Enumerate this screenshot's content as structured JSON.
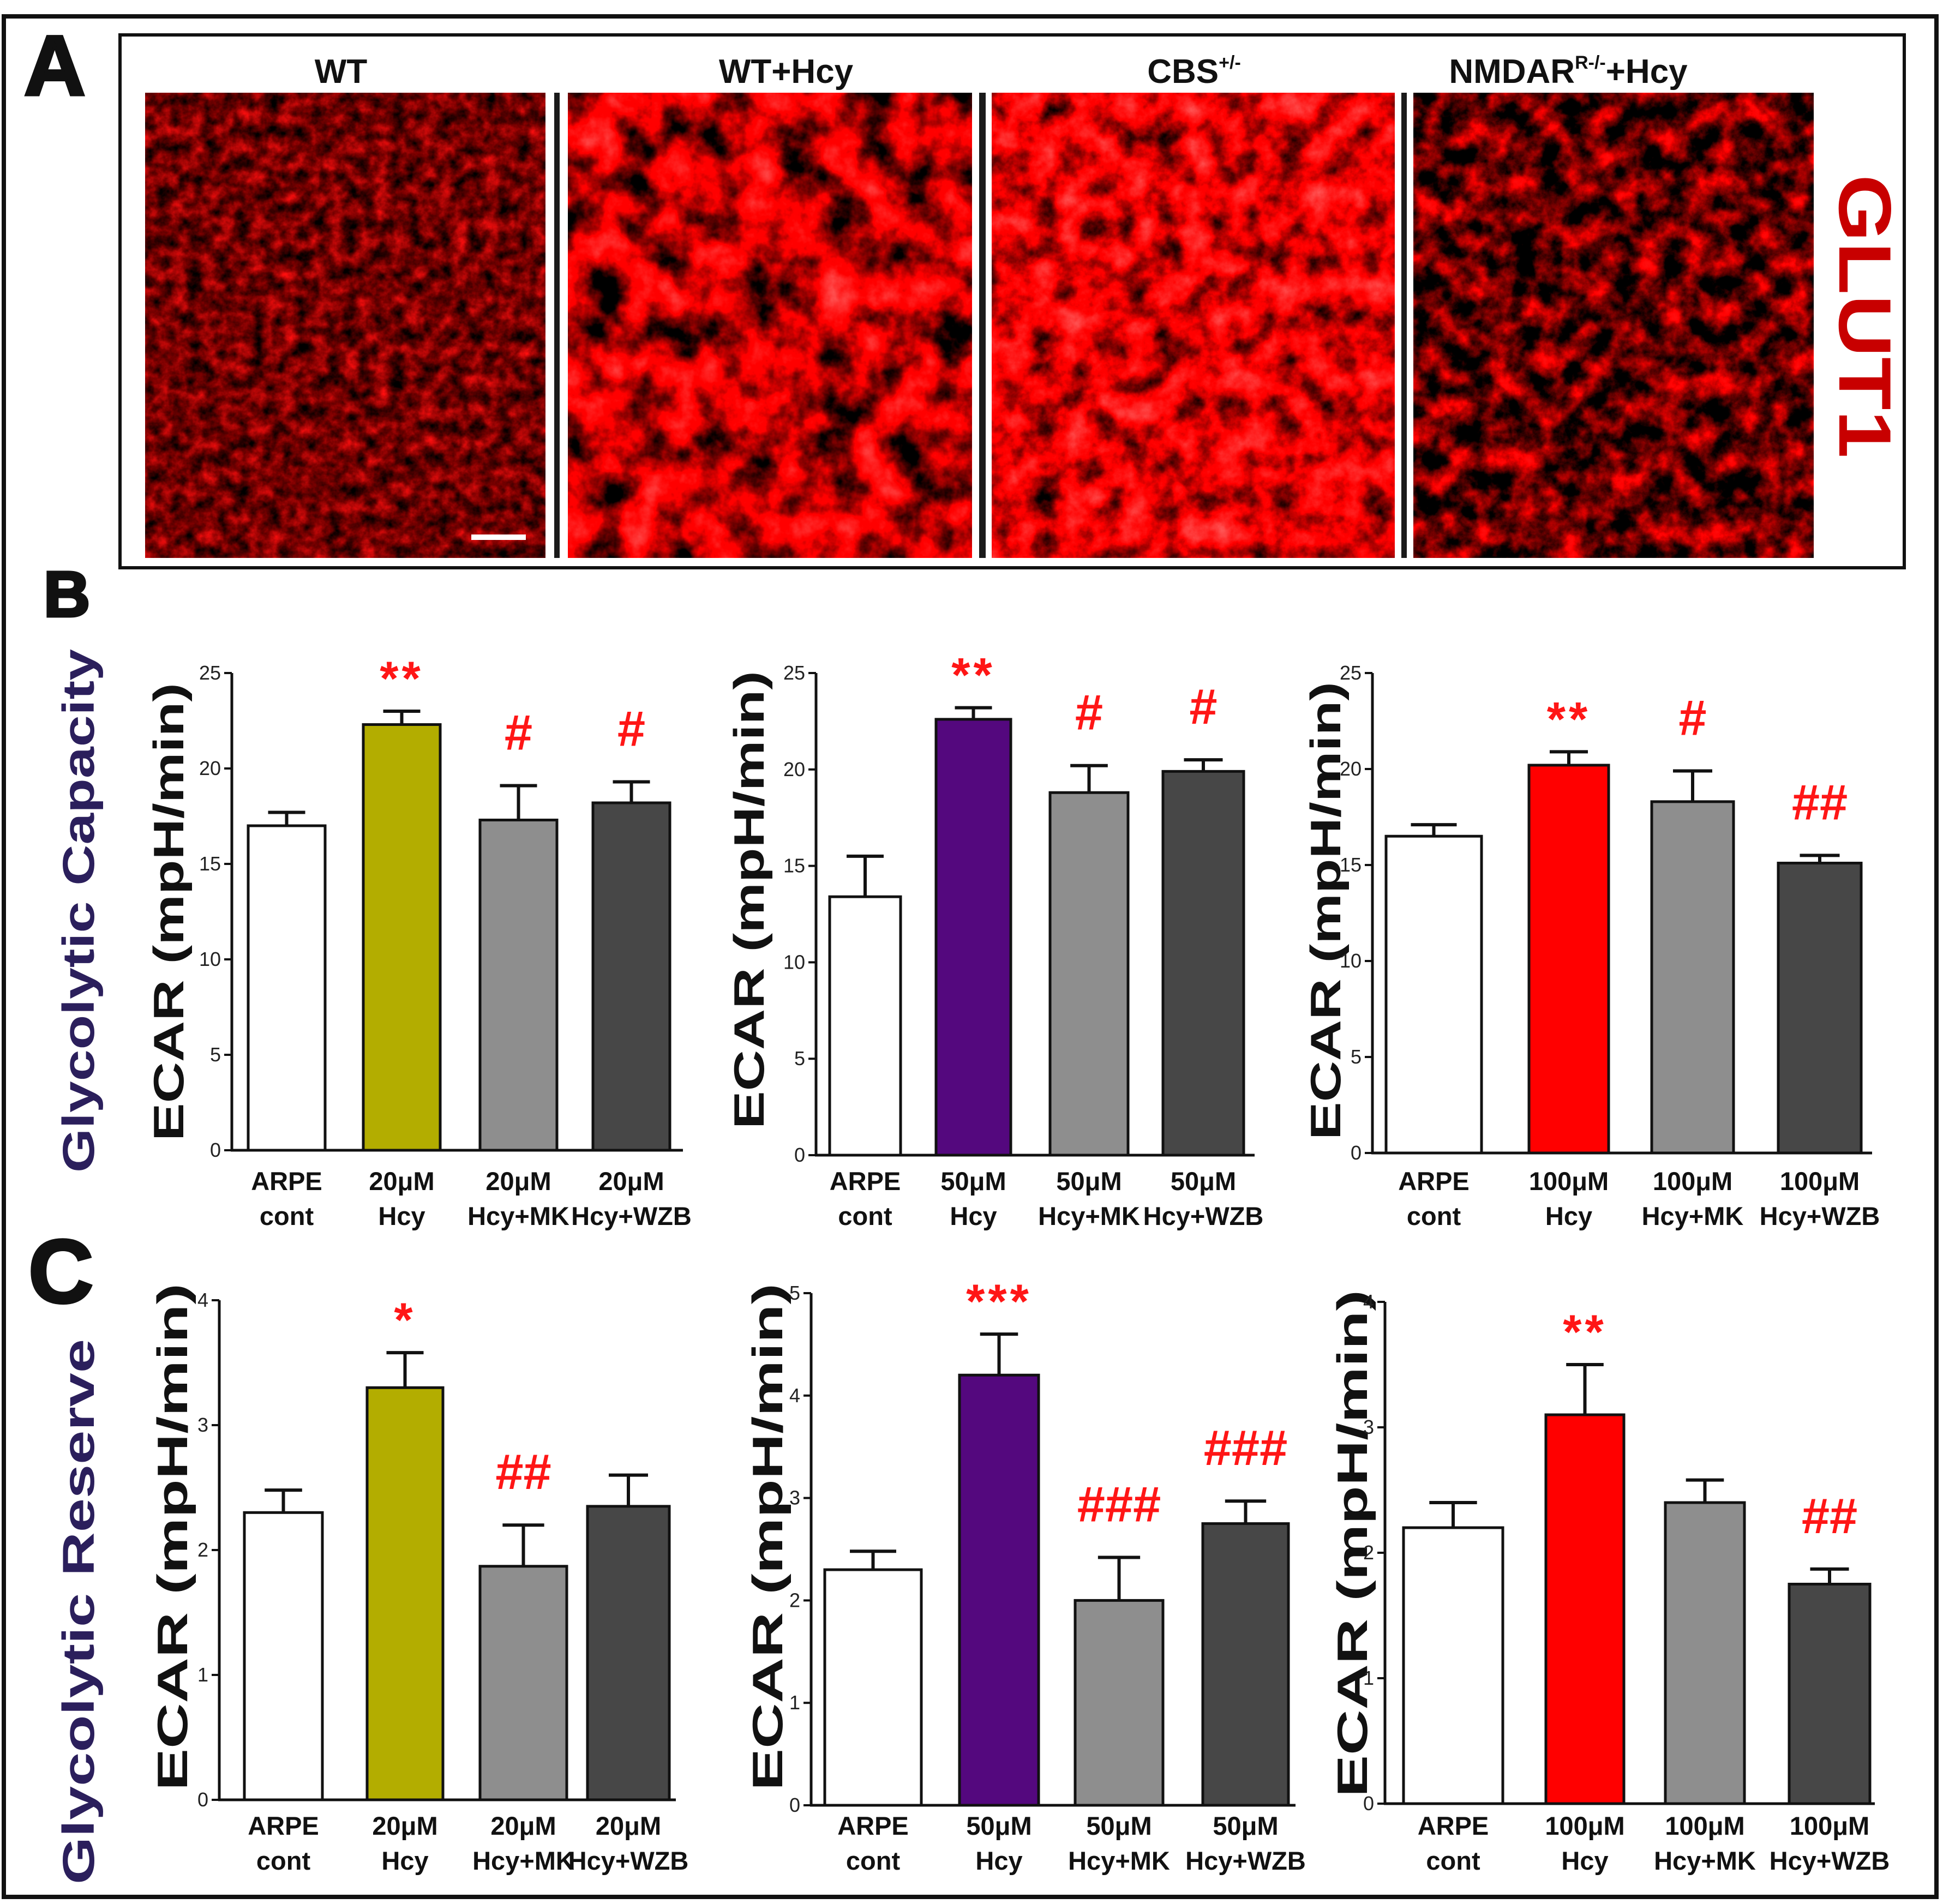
{
  "panel_labels": {
    "a": "A",
    "b": "B",
    "c": "C"
  },
  "panel_a": {
    "titles": [
      {
        "main": "WT"
      },
      {
        "main": "WT+Hcy"
      },
      {
        "main": "CBS",
        "sup": "+/-"
      },
      {
        "main": "NMDAR",
        "sup": "R-/-",
        "suffix": "+Hcy"
      }
    ],
    "marker": "GLUT1",
    "marker_color": "#c80000"
  },
  "row_labels": {
    "b": "Glycolytic Capacity",
    "c": "Glycolytic Reserve",
    "color": "#2b1f5c"
  },
  "significance_color": "#ff1616",
  "chart_data": [
    {
      "id": "B1",
      "type": "bar",
      "row": "B",
      "ylabel": "ECAR (mpH/min)",
      "ylim": [
        0,
        25
      ],
      "yticks": [
        0,
        5,
        10,
        15,
        20,
        25
      ],
      "categories": [
        [
          "ARPE",
          "cont"
        ],
        [
          "20μM",
          "Hcy"
        ],
        [
          "20μM",
          "Hcy+MK"
        ],
        [
          "20μM",
          "Hcy+WZB"
        ]
      ],
      "values": [
        17.0,
        22.3,
        17.3,
        18.2
      ],
      "errors": [
        0.7,
        0.7,
        1.8,
        1.1
      ],
      "significance": [
        "",
        "**",
        "#",
        "#"
      ],
      "bar_colors": [
        "#ffffff",
        "#b3ad00",
        "#8e8e8e",
        "#474747"
      ]
    },
    {
      "id": "B2",
      "type": "bar",
      "row": "B",
      "ylabel": "ECAR (mpH/min)",
      "ylim": [
        0,
        25
      ],
      "yticks": [
        0,
        5,
        10,
        15,
        20,
        25
      ],
      "categories": [
        [
          "ARPE",
          "cont"
        ],
        [
          "50μM",
          "Hcy"
        ],
        [
          "50μM",
          "Hcy+MK"
        ],
        [
          "50μM",
          "Hcy+WZB"
        ]
      ],
      "values": [
        13.4,
        22.6,
        18.8,
        19.9
      ],
      "errors": [
        2.1,
        0.6,
        1.4,
        0.6
      ],
      "significance": [
        "",
        "**",
        "#",
        "#"
      ],
      "bar_colors": [
        "#ffffff",
        "#54087e",
        "#8e8e8e",
        "#474747"
      ]
    },
    {
      "id": "B3",
      "type": "bar",
      "row": "B",
      "ylabel": "ECAR (mpH/min)",
      "ylim": [
        0,
        25
      ],
      "yticks": [
        0,
        5,
        10,
        15,
        20,
        25
      ],
      "categories": [
        [
          "ARPE",
          "cont"
        ],
        [
          "100μM",
          "Hcy"
        ],
        [
          "100μM",
          "Hcy+MK"
        ],
        [
          "100μM",
          "Hcy+WZB"
        ]
      ],
      "values": [
        16.5,
        20.2,
        18.3,
        15.1
      ],
      "errors": [
        0.6,
        0.7,
        1.6,
        0.4
      ],
      "significance": [
        "",
        "**",
        "#",
        "##"
      ],
      "bar_colors": [
        "#ffffff",
        "#ff0000",
        "#8e8e8e",
        "#474747"
      ]
    },
    {
      "id": "C1",
      "type": "bar",
      "row": "C",
      "ylabel": "ECAR (mpH/min)",
      "ylim": [
        0,
        4
      ],
      "yticks": [
        0,
        1,
        2,
        3,
        4
      ],
      "categories": [
        [
          "ARPE",
          "cont"
        ],
        [
          "20μM",
          "Hcy"
        ],
        [
          "20μM",
          "Hcy+MK"
        ],
        [
          "20μM",
          "Hcy+WZB"
        ]
      ],
      "values": [
        2.3,
        3.3,
        1.87,
        2.35
      ],
      "errors": [
        0.18,
        0.28,
        0.33,
        0.25
      ],
      "significance": [
        "",
        "*",
        "##",
        ""
      ],
      "bar_colors": [
        "#ffffff",
        "#b3ad00",
        "#8e8e8e",
        "#474747"
      ]
    },
    {
      "id": "C2",
      "type": "bar",
      "row": "C",
      "ylabel": "ECAR (mpH/min)",
      "ylim": [
        0,
        5
      ],
      "yticks": [
        0,
        1,
        2,
        3,
        4,
        5
      ],
      "categories": [
        [
          "ARPE",
          "cont"
        ],
        [
          "50μM",
          "Hcy"
        ],
        [
          "50μM",
          "Hcy+MK"
        ],
        [
          "50μM",
          "Hcy+WZB"
        ]
      ],
      "values": [
        2.3,
        4.2,
        2.0,
        2.75
      ],
      "errors": [
        0.18,
        0.4,
        0.42,
        0.22
      ],
      "significance": [
        "",
        "***",
        "###",
        "###"
      ],
      "bar_colors": [
        "#ffffff",
        "#54087e",
        "#8e8e8e",
        "#474747"
      ]
    },
    {
      "id": "C3",
      "type": "bar",
      "row": "C",
      "ylabel": "ECAR (mpH/min)",
      "ylim": [
        0,
        4
      ],
      "yticks": [
        0,
        1,
        2,
        3,
        4
      ],
      "categories": [
        [
          "ARPE",
          "cont"
        ],
        [
          "100μM",
          "Hcy"
        ],
        [
          "100μM",
          "Hcy+MK"
        ],
        [
          "100μM",
          "Hcy+WZB"
        ]
      ],
      "values": [
        2.2,
        3.1,
        2.4,
        1.75
      ],
      "errors": [
        0.2,
        0.4,
        0.18,
        0.12
      ],
      "significance": [
        "",
        "**",
        "",
        "##"
      ],
      "bar_colors": [
        "#ffffff",
        "#ff0000",
        "#8e8e8e",
        "#474747"
      ]
    }
  ]
}
